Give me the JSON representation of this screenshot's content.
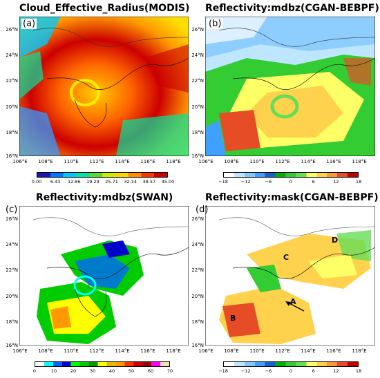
{
  "panels": [
    {
      "label": "(a)",
      "title": "Cloud_Effective_Radius(MODIS)"
    },
    {
      "label": "(b)",
      "title": "Reflectivity:mdbz(CGAN-BEBPF)"
    },
    {
      "label": "(c)",
      "title": "Reflectivity:mdbz(SWAN)"
    },
    {
      "label": "(d)",
      "title": "Reflectivity:mask(CGAN-BEBPF)"
    }
  ],
  "lat_labels": [
    "26°N",
    "24°N",
    "22°N",
    "20°N",
    "18°N",
    "16°N"
  ],
  "lon_labels": [
    "106°E",
    "108°E",
    "110°E",
    "112°E",
    "114°E",
    "116°E",
    "118°E"
  ],
  "colorbars": {
    "a": {
      "ticks": [
        "0.00",
        "6.43",
        "12.86",
        "19.29",
        "25.71",
        "32.14",
        "38.57",
        "45.00"
      ],
      "colors": [
        "#1a1ab3",
        "#0077ff",
        "#00c8ff",
        "#00e6a0",
        "#55dd33",
        "#c8f000",
        "#ffd700",
        "#ff8c00",
        "#ff3300",
        "#cc0000"
      ]
    },
    "b": {
      "ticks": [
        "−18",
        "−12",
        "−6",
        "0",
        "6",
        "12",
        "18"
      ],
      "colors": [
        "#ffffff",
        "#bfe6ff",
        "#82c8ff",
        "#3fa0ff",
        "#1a5fd0",
        "#00b000",
        "#33cc33",
        "#66dd55",
        "#ffff66",
        "#ffd24d",
        "#ff9933",
        "#e64d26",
        "#c00000"
      ]
    },
    "c": {
      "ticks": [
        "0",
        "10",
        "20",
        "30",
        "40",
        "50",
        "60",
        "70"
      ],
      "colors": [
        "#ffffff",
        "#00ffff",
        "#0066ff",
        "#0000cc",
        "#00ff00",
        "#00cc00",
        "#009900",
        "#ffff00",
        "#e6b800",
        "#ff9900",
        "#ff3300",
        "#cc0000",
        "#990000",
        "#ff00ff",
        "#f5deb3"
      ]
    },
    "d": {
      "ticks": [
        "−18",
        "−12",
        "−6",
        "0",
        "6",
        "12",
        "18"
      ],
      "colors": [
        "#ffffff",
        "#bfe6ff",
        "#82c8ff",
        "#3fa0ff",
        "#1a5fd0",
        "#00b000",
        "#33cc33",
        "#66dd55",
        "#ffff66",
        "#ffd24d",
        "#ff9933",
        "#e64d26",
        "#c00000"
      ]
    }
  },
  "annotations": [
    "A",
    "B",
    "C",
    "D"
  ]
}
